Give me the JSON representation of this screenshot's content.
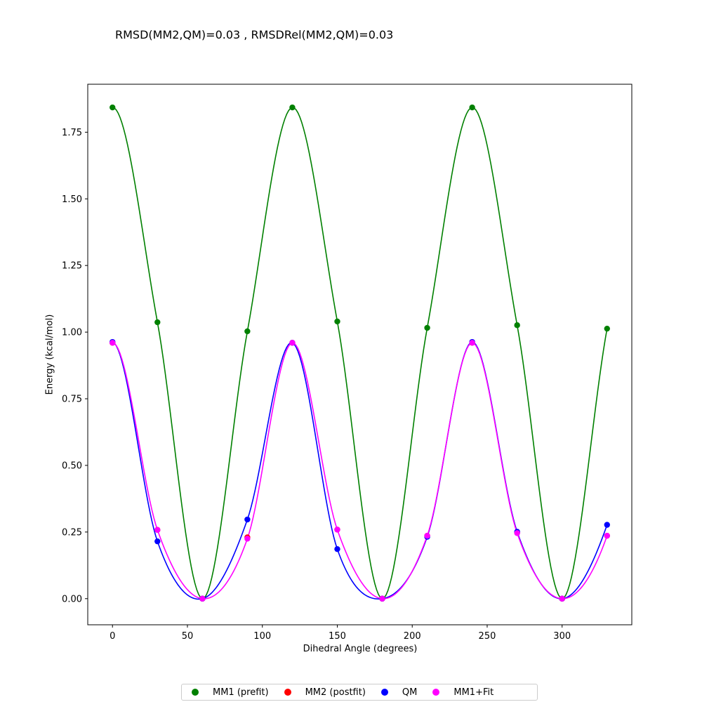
{
  "chart_data": {
    "type": "scatter",
    "title": "RMSD(MM2,QM)=0.03 , RMSDRel(MM2,QM)=0.03",
    "xlabel": "Dihedral Angle (degrees)",
    "ylabel": "Energy (kcal/mol)",
    "xlim": [
      -16.5,
      346.5
    ],
    "ylim": [
      -0.098,
      1.93
    ],
    "x_ticks": [
      0,
      50,
      100,
      150,
      200,
      250,
      300
    ],
    "y_ticks": [
      0.0,
      0.25,
      0.5,
      0.75,
      1.0,
      1.25,
      1.5,
      1.75
    ],
    "y_tick_labels": [
      "0.00",
      "0.25",
      "0.50",
      "0.75",
      "1.00",
      "1.25",
      "1.50",
      "1.75"
    ],
    "grid": false,
    "legend_position": "bottom-center",
    "series": [
      {
        "name": "MM1 (prefit)",
        "color": "#008000",
        "x": [
          0,
          30,
          60,
          90,
          120,
          150,
          180,
          210,
          240,
          270,
          300,
          330
        ],
        "y": [
          1.843,
          1.037,
          0.0,
          1.003,
          1.843,
          1.04,
          0.0,
          1.016,
          1.843,
          1.026,
          0.0,
          1.013
        ],
        "curve": true
      },
      {
        "name": "MM2 (postfit)",
        "color": "#ff0000",
        "x": [
          0,
          30,
          60,
          90,
          120,
          150,
          180,
          210,
          240,
          270,
          300,
          330
        ],
        "y": [
          0.96,
          0.258,
          0.0,
          0.23,
          0.96,
          0.259,
          0.0,
          0.236,
          0.96,
          0.248,
          0.0,
          0.236
        ],
        "curve": false
      },
      {
        "name": "QM",
        "color": "#0000ff",
        "x": [
          0,
          30,
          60,
          90,
          120,
          150,
          180,
          210,
          240,
          270,
          300,
          330
        ],
        "y": [
          0.963,
          0.215,
          0.0,
          0.297,
          0.96,
          0.186,
          0.0,
          0.232,
          0.963,
          0.251,
          0.0,
          0.277
        ],
        "curve": true
      },
      {
        "name": "MM1+Fit",
        "color": "#ff00ff",
        "x": [
          0,
          30,
          60,
          90,
          120,
          150,
          180,
          210,
          240,
          270,
          300,
          330
        ],
        "y": [
          0.96,
          0.258,
          0.0,
          0.225,
          0.96,
          0.259,
          0.0,
          0.236,
          0.96,
          0.246,
          0.0,
          0.236
        ],
        "curve": true
      }
    ]
  }
}
